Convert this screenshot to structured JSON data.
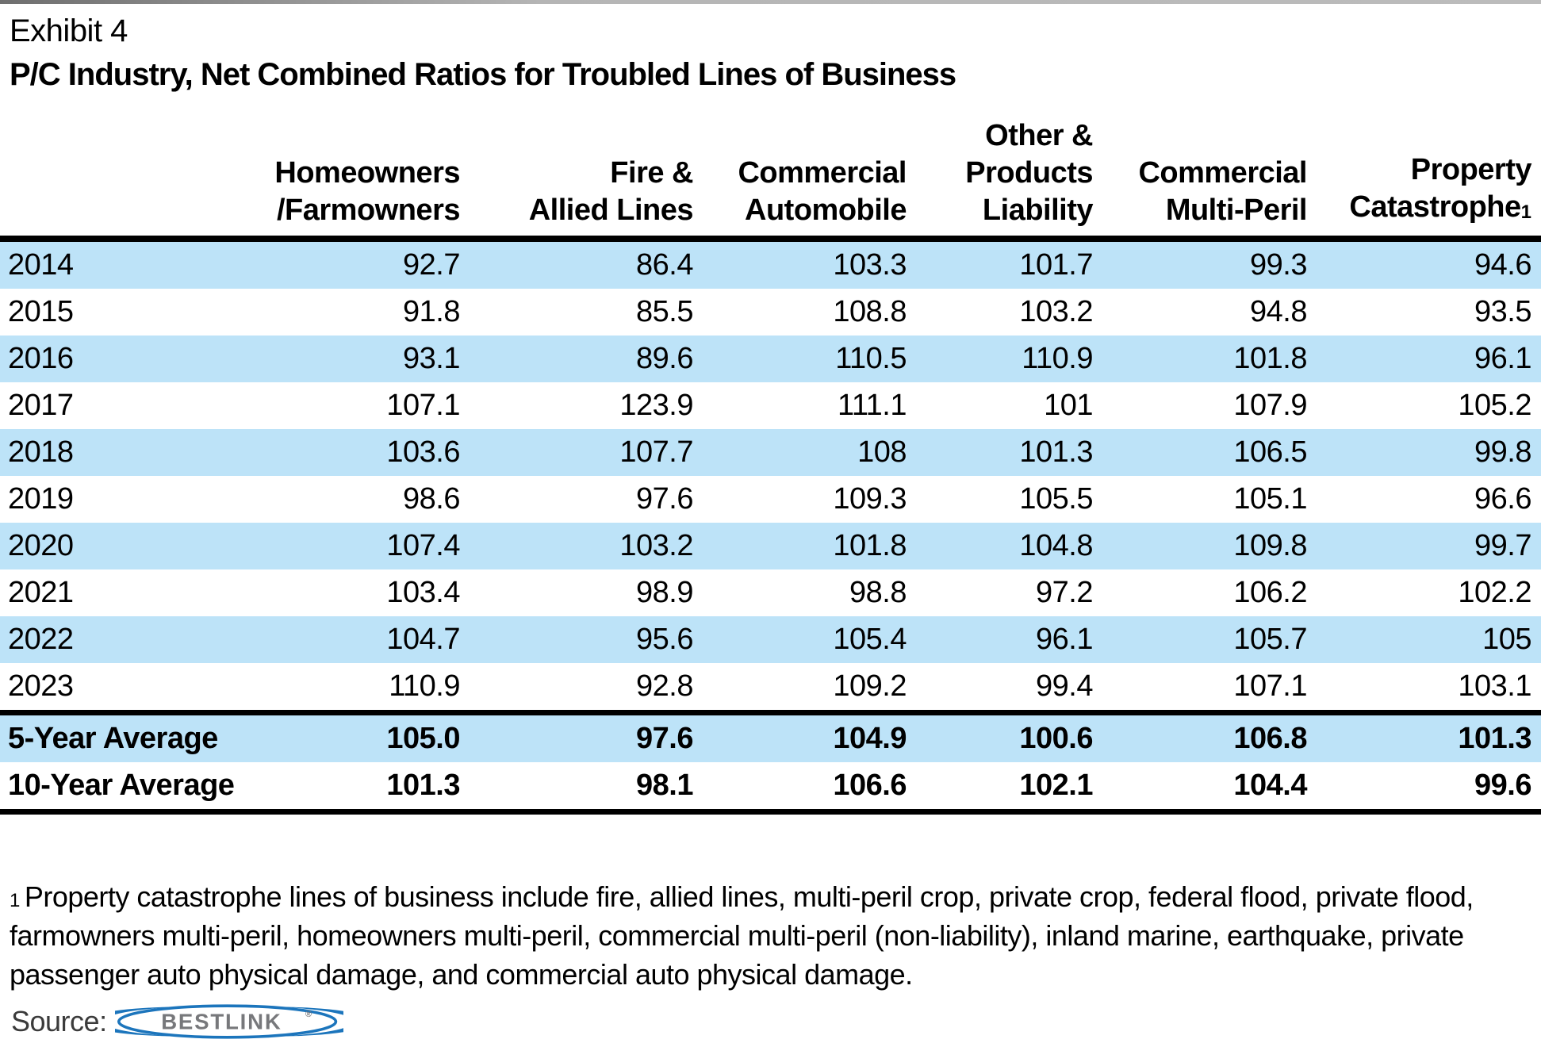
{
  "exhibit_label": "Exhibit 4",
  "chart_data": {
    "type": "table",
    "title": "P/C Industry, Net Combined Ratios for Troubled Lines of Business",
    "columns": [
      {
        "name": "Homeowners/Farmowners",
        "lines": [
          "Homeowners",
          "/Farmowners"
        ]
      },
      {
        "name": "Fire & Allied Lines",
        "lines": [
          "Fire &",
          "Allied Lines"
        ]
      },
      {
        "name": "Commercial Automobile",
        "lines": [
          "Commercial",
          "Automobile"
        ]
      },
      {
        "name": "Other & Products Liability",
        "lines": [
          "Other &",
          "Products",
          "Liability"
        ]
      },
      {
        "name": "Commercial Multi-Peril",
        "lines": [
          "Commercial",
          "Multi-Peril"
        ]
      },
      {
        "name": "Property Catastrophe",
        "lines": [
          "Property",
          "Catastrophe"
        ],
        "footnote_marker": "1"
      }
    ],
    "rows": [
      {
        "label": "2014",
        "values": [
          "92.7",
          "86.4",
          "103.3",
          "101.7",
          "99.3",
          "94.6"
        ],
        "shaded": true
      },
      {
        "label": "2015",
        "values": [
          "91.8",
          "85.5",
          "108.8",
          "103.2",
          "94.8",
          "93.5"
        ],
        "shaded": false
      },
      {
        "label": "2016",
        "values": [
          "93.1",
          "89.6",
          "110.5",
          "110.9",
          "101.8",
          "96.1"
        ],
        "shaded": true
      },
      {
        "label": "2017",
        "values": [
          "107.1",
          "123.9",
          "111.1",
          "101",
          "107.9",
          "105.2"
        ],
        "shaded": false
      },
      {
        "label": "2018",
        "values": [
          "103.6",
          "107.7",
          "108",
          "101.3",
          "106.5",
          "99.8"
        ],
        "shaded": true
      },
      {
        "label": "2019",
        "values": [
          "98.6",
          "97.6",
          "109.3",
          "105.5",
          "105.1",
          "96.6"
        ],
        "shaded": false
      },
      {
        "label": "2020",
        "values": [
          "107.4",
          "103.2",
          "101.8",
          "104.8",
          "109.8",
          "99.7"
        ],
        "shaded": true
      },
      {
        "label": "2021",
        "values": [
          "103.4",
          "98.9",
          "98.8",
          "97.2",
          "106.2",
          "102.2"
        ],
        "shaded": false
      },
      {
        "label": "2022",
        "values": [
          "104.7",
          "95.6",
          "105.4",
          "96.1",
          "105.7",
          "105"
        ],
        "shaded": true
      },
      {
        "label": "2023",
        "values": [
          "110.9",
          "92.8",
          "109.2",
          "99.4",
          "107.1",
          "103.1"
        ],
        "shaded": false
      }
    ],
    "summary_rows": [
      {
        "label": "5-Year Average",
        "values": [
          "105.0",
          "97.6",
          "104.9",
          "100.6",
          "106.8",
          "101.3"
        ],
        "shaded": true
      },
      {
        "label": "10-Year Average",
        "values": [
          "101.3",
          "98.1",
          "106.6",
          "102.1",
          "104.4",
          "99.6"
        ],
        "shaded": false
      }
    ]
  },
  "footnote": {
    "marker": "1",
    "text": "Property catastrophe lines of business include fire, allied lines, multi-peril crop, private crop, federal flood, private flood, farmowners multi-peril, homeowners multi-peril, commercial multi-peril (non-liability), inland marine, earthquake, private passenger auto physical damage, and commercial auto physical damage."
  },
  "source": {
    "label": "Source:",
    "logo_text": "BESTLINK",
    "registered": "®"
  },
  "colors": {
    "row_highlight": "#BDE3F8",
    "border_black": "#000000",
    "logo_blue": "#1C75BC",
    "logo_gray": "#77787B",
    "source_text": "#3B3B3B"
  }
}
